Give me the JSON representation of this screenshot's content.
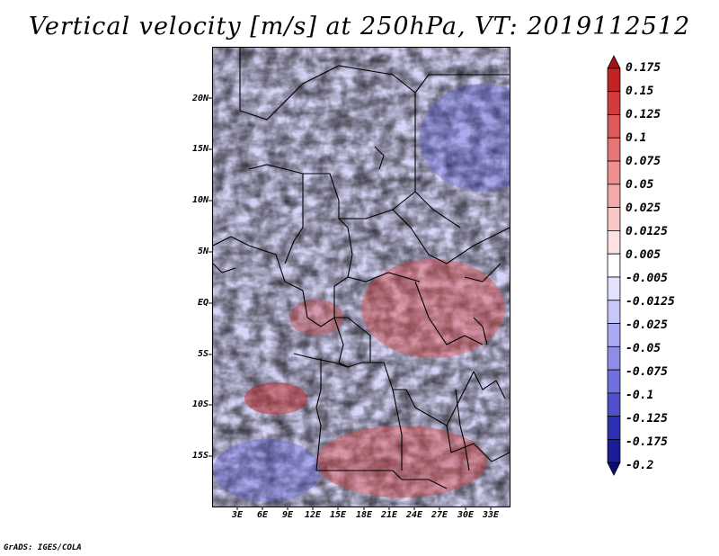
{
  "title": "Vertical velocity [m/s] at 250hPa, VT: 2019112512",
  "credit": "GrADS: IGES/COLA",
  "map": {
    "variable": "Vertical velocity",
    "units": "m/s",
    "level": "250hPa",
    "valid_time": "2019112512",
    "lat_labels": [
      "20N",
      "15N",
      "10N",
      "5N",
      "EQ",
      "5S",
      "10S",
      "15S"
    ],
    "lon_labels": [
      "3E",
      "6E",
      "9E",
      "12E",
      "15E",
      "18E",
      "21E",
      "24E",
      "27E",
      "30E",
      "33E"
    ]
  },
  "colorbar": {
    "levels": [
      "0.175",
      "0.15",
      "0.125",
      "0.1",
      "0.075",
      "0.05",
      "0.025",
      "0.0125",
      "0.005",
      "-0.005",
      "-0.0125",
      "-0.025",
      "-0.05",
      "-0.075",
      "-0.1",
      "-0.125",
      "-0.175",
      "-0.2"
    ],
    "colors": [
      "#a01414",
      "#c22424",
      "#d33c3c",
      "#dd5a5a",
      "#e67575",
      "#ee9090",
      "#f4aaaa",
      "#f8c6c6",
      "#fce2e2",
      "#ffffff",
      "#e2e2fc",
      "#c8c8f8",
      "#aaaaf2",
      "#8e8ee8",
      "#7070dc",
      "#5050cc",
      "#3030b4",
      "#1c1c96",
      "#0c0c78"
    ]
  }
}
